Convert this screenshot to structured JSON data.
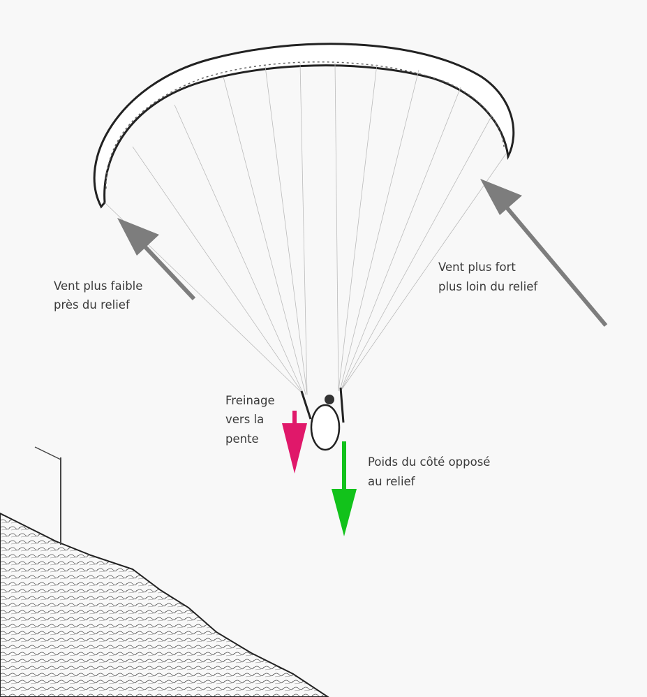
{
  "annotations": [
    {
      "lines": [
        "Vent plus faible",
        "près du relief"
      ]
    },
    {
      "lines": [
        "Vent plus fort",
        "plus loin du relief"
      ]
    },
    {
      "lines": [
        "Freinage",
        "vers la",
        "pente"
      ]
    },
    {
      "lines": [
        "Poids du côté opposé",
        "au relief"
      ]
    }
  ]
}
